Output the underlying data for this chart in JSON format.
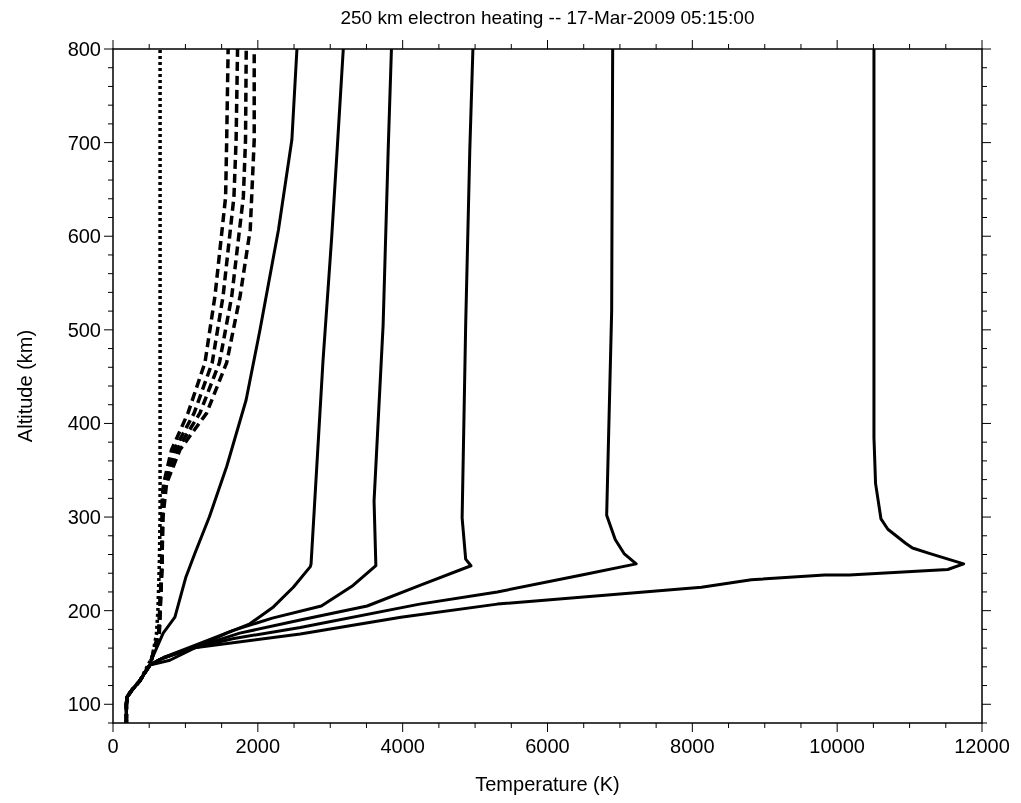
{
  "chart_data": {
    "type": "line",
    "title": "250 km electron heating -- 17-Mar-2009 05:15:00",
    "xlabel": "Temperature (K)",
    "ylabel": "Altitude (km)",
    "xlim": [
      0,
      12000
    ],
    "ylim": [
      80,
      800
    ],
    "xticks": [
      0,
      {
        "value": 500,
        "label": null
      },
      {
        "value": 1000,
        "label": null
      },
      {
        "value": 1500,
        "label": null
      },
      2000,
      {
        "value": 2500,
        "label": null
      },
      {
        "value": 3000,
        "label": null
      },
      {
        "value": 3500,
        "label": null
      },
      4000,
      {
        "value": 4500,
        "label": null
      },
      {
        "value": 5000,
        "label": null
      },
      {
        "value": 5500,
        "label": null
      },
      6000,
      {
        "value": 6500,
        "label": null
      },
      {
        "value": 7000,
        "label": null
      },
      {
        "value": 7500,
        "label": null
      },
      8000,
      {
        "value": 8500,
        "label": null
      },
      {
        "value": 9000,
        "label": null
      },
      {
        "value": 9500,
        "label": null
      },
      10000,
      {
        "value": 10500,
        "label": null
      },
      {
        "value": 11000,
        "label": null
      },
      {
        "value": 11500,
        "label": null
      },
      12000
    ],
    "yticks": [
      {
        "value": 80,
        "label": null
      },
      100,
      {
        "value": 120,
        "label": null
      },
      {
        "value": 140,
        "label": null
      },
      {
        "value": 160,
        "label": null
      },
      {
        "value": 180,
        "label": null
      },
      200,
      {
        "value": 220,
        "label": null
      },
      {
        "value": 240,
        "label": null
      },
      {
        "value": 260,
        "label": null
      },
      {
        "value": 280,
        "label": null
      },
      300,
      {
        "value": 320,
        "label": null
      },
      {
        "value": 340,
        "label": null
      },
      {
        "value": 360,
        "label": null
      },
      {
        "value": 380,
        "label": null
      },
      400,
      {
        "value": 420,
        "label": null
      },
      {
        "value": 440,
        "label": null
      },
      {
        "value": 460,
        "label": null
      },
      {
        "value": 480,
        "label": null
      },
      500,
      {
        "value": 520,
        "label": null
      },
      {
        "value": 540,
        "label": null
      },
      {
        "value": 560,
        "label": null
      },
      {
        "value": 580,
        "label": null
      },
      600,
      {
        "value": 620,
        "label": null
      },
      {
        "value": 640,
        "label": null
      },
      {
        "value": 660,
        "label": null
      },
      {
        "value": 680,
        "label": null
      },
      700,
      {
        "value": 720,
        "label": null
      },
      {
        "value": 740,
        "label": null
      },
      {
        "value": 760,
        "label": null
      },
      {
        "value": 780,
        "label": null
      },
      800
    ],
    "series": [
      {
        "color": "#000000",
        "line_style": "dotted",
        "x": [
          185,
          185,
          195,
          260,
          370,
          470,
          540,
          600,
          620,
          640,
          650,
          650
        ],
        "values": [
          80,
          100,
          108,
          115,
          125,
          140,
          150,
          175,
          200,
          250,
          300,
          800
        ]
      },
      {
        "color": "#000000",
        "line_style": "dashed",
        "x": [
          185,
          185,
          195,
          260,
          370,
          450,
          510,
          630,
          670,
          680,
          700,
          809,
          1035,
          1270,
          1408,
          1555,
          1570,
          1590
        ],
        "values": [
          80,
          100,
          108,
          115,
          125,
          135,
          142,
          176,
          245,
          322,
          336,
          372,
          411,
          465,
          536,
          642,
          703,
          800
        ]
      },
      {
        "color": "#000000",
        "line_style": "dashed",
        "x": [
          185,
          185,
          195,
          260,
          370,
          450,
          510,
          633,
          672,
          685,
          713,
          848,
          1120,
          1370,
          1520,
          1670,
          1700,
          1720
        ],
        "values": [
          80,
          100,
          108,
          115,
          125,
          135,
          142,
          176,
          245,
          315,
          336,
          372,
          411,
          465,
          536,
          642,
          703,
          800
        ]
      },
      {
        "color": "#000000",
        "line_style": "dashed",
        "x": [
          185,
          185,
          195,
          260,
          370,
          450,
          510,
          637,
          674,
          688,
          727,
          887,
          1200,
          1470,
          1640,
          1800,
          1830,
          1840
        ],
        "values": [
          80,
          100,
          108,
          115,
          125,
          135,
          142,
          176,
          245,
          308,
          336,
          372,
          411,
          465,
          536,
          642,
          703,
          800
        ]
      },
      {
        "color": "#000000",
        "line_style": "dashed",
        "x": [
          185,
          185,
          195,
          260,
          370,
          450,
          510,
          640,
          675,
          690,
          740,
          925,
          1293,
          1570,
          1755,
          1895,
          1950,
          1950
        ],
        "values": [
          80,
          100,
          108,
          115,
          125,
          135,
          142,
          176,
          245,
          300,
          336,
          372,
          411,
          465,
          536,
          607,
          703,
          800
        ]
      },
      {
        "color": "#000000",
        "line_style": "solid",
        "x": [
          185,
          185,
          195,
          260,
          370,
          450,
          510,
          550,
          693,
          855,
          1007,
          1130,
          1330,
          1570,
          1838,
          2030,
          2285,
          2470,
          2540
        ],
        "values": [
          80,
          100,
          108,
          115,
          125,
          135,
          142,
          151,
          176,
          193,
          236,
          261,
          300,
          354,
          425,
          500,
          607,
          703,
          800
        ]
      },
      {
        "color": "#000000",
        "line_style": "solid",
        "x": [
          185,
          185,
          195,
          260,
          370,
          450,
          510,
          785,
          1150,
          1570,
          1890,
          2215,
          2490,
          2725,
          2735,
          2900,
          3020,
          3095,
          3180
        ],
        "values": [
          80,
          100,
          108,
          115,
          125,
          135,
          142,
          147,
          161,
          176,
          186,
          204,
          225,
          247,
          250,
          467,
          599,
          692,
          800
        ]
      },
      {
        "color": "#000000",
        "line_style": "solid",
        "x": [
          185,
          185,
          195,
          260,
          370,
          450,
          510,
          700,
          1200,
          1660,
          2200,
          2877,
          3315,
          3630,
          3605,
          3730,
          3800,
          3845
        ],
        "values": [
          80,
          100,
          108,
          115,
          125,
          135,
          142,
          150,
          165,
          179,
          192,
          205,
          227,
          248,
          317,
          505,
          692,
          800
        ]
      },
      {
        "color": "#000000",
        "line_style": "solid",
        "x": [
          185,
          185,
          195,
          260,
          370,
          450,
          510,
          700,
          1100,
          1750,
          2586,
          3510,
          4238,
          4943,
          4870,
          4821,
          4870,
          4927,
          4970
        ],
        "values": [
          80,
          100,
          108,
          115,
          125,
          135,
          142,
          150,
          160,
          176,
          190,
          205,
          227,
          248,
          255,
          299,
          505,
          692,
          800
        ]
      },
      {
        "color": "#000000",
        "line_style": "solid",
        "x": [
          185,
          185,
          195,
          260,
          370,
          450,
          510,
          650,
          1000,
          1650,
          2586,
          4234,
          5307,
          6473,
          7225,
          7057,
          6935,
          6817,
          6886,
          6900
        ],
        "values": [
          80,
          100,
          108,
          115,
          125,
          135,
          142,
          148,
          158,
          170,
          182,
          207,
          220,
          238,
          250,
          261,
          276,
          302,
          520,
          800
        ]
      },
      {
        "color": "#000000",
        "line_style": "solid",
        "x": [
          185,
          185,
          195,
          260,
          370,
          450,
          510,
          650,
          1100,
          2586,
          3975,
          5307,
          8126,
          8815,
          9826,
          10167,
          11527,
          11746,
          11283,
          11040,
          10945,
          10700,
          10605,
          10530,
          10508,
          10508
        ],
        "values": [
          80,
          100,
          108,
          115,
          125,
          135,
          142,
          148,
          160,
          175,
          193,
          207,
          225,
          233,
          238,
          238,
          244,
          250,
          261,
          267,
          272,
          287,
          298,
          336,
          385,
          800
        ]
      }
    ]
  }
}
